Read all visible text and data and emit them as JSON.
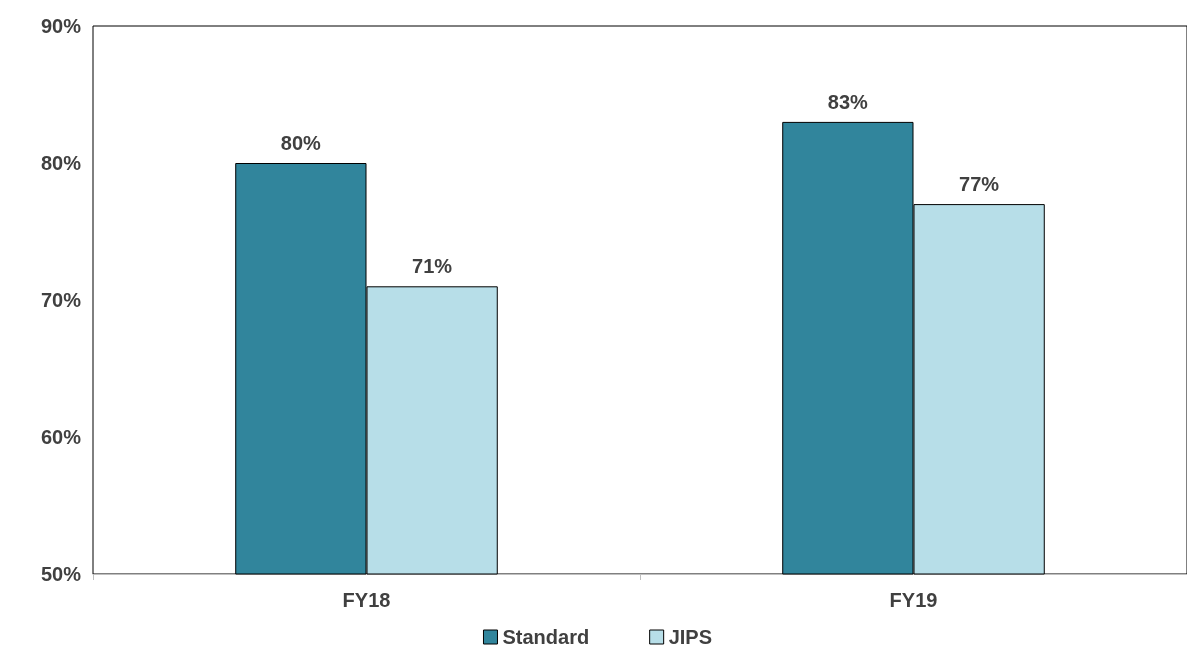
{
  "chart_data": {
    "type": "bar",
    "categories": [
      "FY18",
      "FY19"
    ],
    "series": [
      {
        "name": "Standard",
        "color": "#31859c",
        "values": [
          80,
          83
        ],
        "value_labels": [
          "80%",
          "83%"
        ]
      },
      {
        "name": "JIPS",
        "color": "#b7dee8",
        "values": [
          71,
          77
        ],
        "value_labels": [
          "71%",
          "77%"
        ]
      }
    ],
    "ylim": [
      50,
      90
    ],
    "yticks": [
      {
        "value": 50,
        "label": "50%"
      },
      {
        "value": 60,
        "label": "60%"
      },
      {
        "value": 70,
        "label": "70%"
      },
      {
        "value": 80,
        "label": "80%"
      },
      {
        "value": 90,
        "label": "90%"
      }
    ],
    "grid": false,
    "legend": "bottom"
  }
}
